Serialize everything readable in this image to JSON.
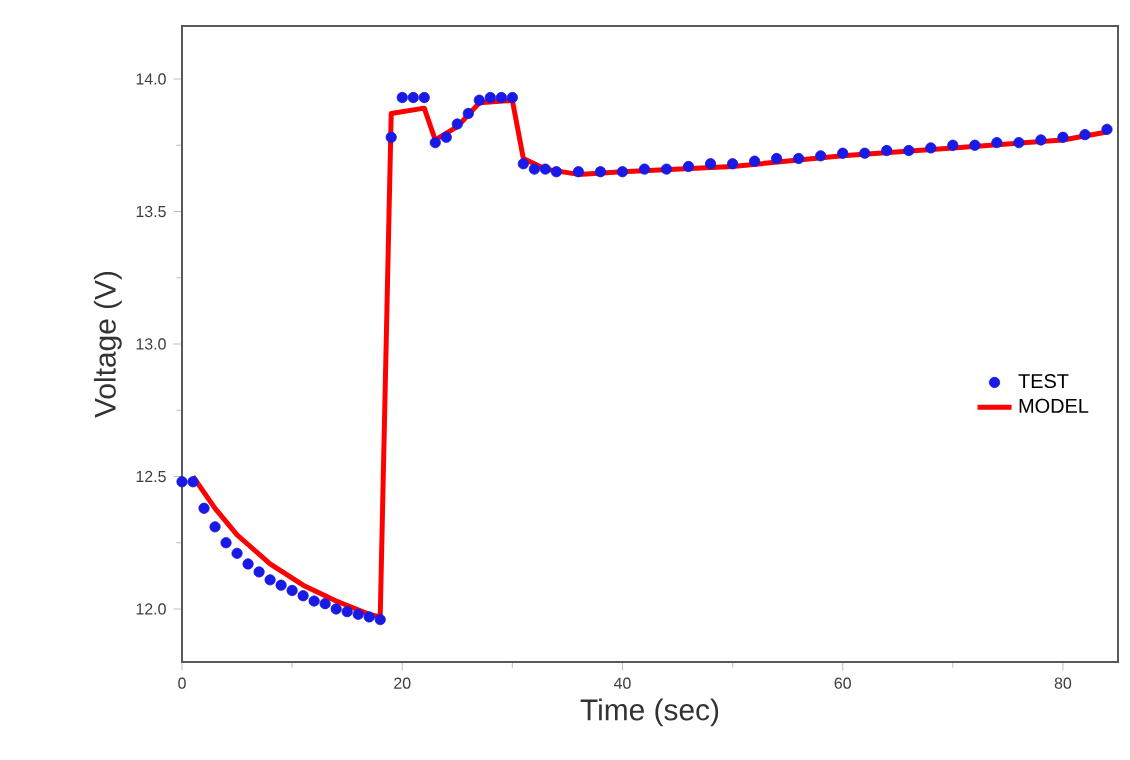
{
  "chart_data": {
    "type": "line",
    "xlabel": "Time (sec)",
    "ylabel": "Voltage (V)",
    "xlim": [
      0,
      85
    ],
    "ylim": [
      11.8,
      14.2
    ],
    "xticks": [
      0,
      20,
      40,
      60,
      80
    ],
    "yticks": [
      {
        "value": 12.0,
        "label": "12.0"
      },
      12.5,
      {
        "value": 13.0,
        "label": "13.0"
      },
      13.5,
      {
        "value": 14.0,
        "label": "14.0"
      }
    ],
    "legend": "right",
    "grid": false,
    "series": [
      {
        "name": "TEST",
        "type": "scatter",
        "marker": "circle",
        "color": "#1a1ae6",
        "x": [
          0,
          1,
          2,
          3,
          4,
          5,
          6,
          7,
          8,
          9,
          10,
          11,
          12,
          13,
          14,
          15,
          16,
          17,
          18,
          19,
          20,
          21,
          22,
          23,
          24,
          25,
          26,
          27,
          28,
          29,
          30,
          31,
          32,
          33,
          34,
          36,
          38,
          40,
          42,
          44,
          46,
          48,
          50,
          52,
          54,
          56,
          58,
          60,
          62,
          64,
          66,
          68,
          70,
          72,
          74,
          76,
          78,
          80,
          82,
          84
        ],
        "values": [
          12.48,
          12.48,
          12.38,
          12.31,
          12.25,
          12.21,
          12.17,
          12.14,
          12.11,
          12.09,
          12.07,
          12.05,
          12.03,
          12.02,
          12.0,
          11.99,
          11.98,
          11.97,
          11.96,
          13.78,
          13.93,
          13.93,
          13.93,
          13.76,
          13.78,
          13.83,
          13.87,
          13.92,
          13.93,
          13.93,
          13.93,
          13.68,
          13.66,
          13.66,
          13.65,
          13.65,
          13.65,
          13.65,
          13.66,
          13.66,
          13.67,
          13.68,
          13.68,
          13.69,
          13.7,
          13.7,
          13.71,
          13.72,
          13.72,
          13.73,
          13.73,
          13.74,
          13.75,
          13.75,
          13.76,
          13.76,
          13.77,
          13.78,
          13.79,
          13.81
        ]
      },
      {
        "name": "MODEL",
        "marker": "none",
        "line_style": "solid",
        "color": "#ff0000",
        "x": [
          1,
          3,
          5,
          8,
          11,
          14,
          17,
          18,
          19,
          22,
          23,
          25,
          27,
          30,
          31,
          33,
          36,
          40,
          50,
          60,
          70,
          80,
          84
        ],
        "values": [
          12.5,
          12.38,
          12.28,
          12.17,
          12.09,
          12.03,
          11.98,
          11.97,
          13.87,
          13.89,
          13.77,
          13.82,
          13.91,
          13.92,
          13.7,
          13.66,
          13.64,
          13.65,
          13.67,
          13.71,
          13.74,
          13.77,
          13.8
        ]
      }
    ]
  }
}
